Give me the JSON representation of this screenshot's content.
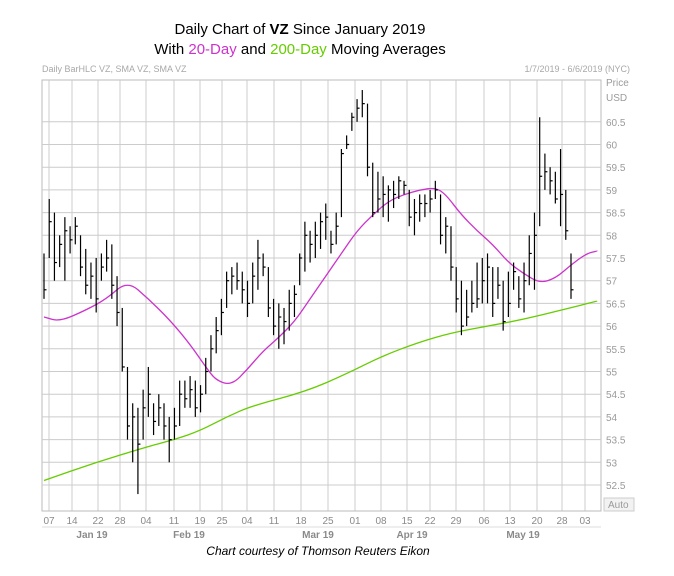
{
  "chart_data": {
    "type": "line",
    "title": {
      "line1_prefix": "Daily Chart of ",
      "line1_ticker": "VZ",
      "line1_suffix": " Since January 2019",
      "line2_prefix": "With ",
      "line2_sma20": "20-Day",
      "line2_mid": " and ",
      "line2_sma200": "200-Day",
      "line2_suffix": " Moving Averages"
    },
    "header_left": "Daily BarHLC VZ, SMA VZ, SMA VZ",
    "header_right": "1/7/2019 - 6/6/2019 (NYC)",
    "y_axis_title_1": "Price",
    "y_axis_title_2": "USD",
    "auto_label": "Auto",
    "credit": "Chart courtesy of Thomson Reuters Eikon",
    "ylim": [
      52,
      61.5
    ],
    "y_ticks": [
      "52.5",
      "53",
      "53.5",
      "54",
      "54.5",
      "55",
      "55.5",
      "56",
      "56.5",
      "57",
      "57.5",
      "58",
      "58.5",
      "59",
      "59.5",
      "60",
      "60.5"
    ],
    "x_tick_labels": [
      "07",
      "14",
      "22",
      "28",
      "04",
      "11",
      "19",
      "25",
      "04",
      "11",
      "18",
      "25",
      "01",
      "08",
      "15",
      "22",
      "29",
      "06",
      "13",
      "20",
      "28",
      "03"
    ],
    "month_labels": [
      "Jan 19",
      "Feb 19",
      "Mar 19",
      "Apr 19",
      "May 19"
    ],
    "colors": {
      "price": "#000000",
      "sma20": "#cc33cc",
      "sma200": "#66cc00",
      "grid": "#cccccc",
      "sma20_text": "#cc33cc",
      "sma200_text": "#66cc00"
    },
    "bars": [
      [
        56.6,
        57.6,
        56.8
      ],
      [
        57.5,
        58.8,
        58.3
      ],
      [
        57.0,
        58.5,
        57.4
      ],
      [
        57.3,
        58.0,
        57.8
      ],
      [
        57.0,
        58.4,
        58.1
      ],
      [
        57.6,
        58.2,
        57.9
      ],
      [
        57.8,
        58.4,
        58.2
      ],
      [
        57.1,
        58.0,
        57.3
      ],
      [
        56.7,
        57.7,
        56.9
      ],
      [
        56.6,
        57.4,
        57.1
      ],
      [
        56.3,
        57.5,
        56.6
      ],
      [
        57.0,
        57.6,
        57.3
      ],
      [
        57.2,
        57.9,
        57.5
      ],
      [
        56.6,
        57.8,
        56.9
      ],
      [
        56.0,
        57.1,
        56.3
      ],
      [
        55.0,
        56.4,
        55.1
      ],
      [
        53.5,
        55.1,
        53.8
      ],
      [
        53.0,
        54.3,
        54.0
      ],
      [
        52.3,
        54.2,
        53.4
      ],
      [
        53.5,
        54.6,
        54.2
      ],
      [
        54.0,
        55.1,
        54.5
      ],
      [
        53.6,
        54.3,
        53.9
      ],
      [
        53.8,
        54.5,
        54.2
      ],
      [
        53.5,
        54.3,
        53.8
      ],
      [
        53.0,
        54.0,
        53.5
      ],
      [
        53.5,
        54.2,
        53.8
      ],
      [
        53.8,
        54.8,
        54.5
      ],
      [
        54.2,
        54.8,
        54.4
      ],
      [
        54.2,
        54.9,
        54.6
      ],
      [
        54.0,
        54.8,
        54.2
      ],
      [
        54.1,
        54.7,
        54.5
      ],
      [
        54.5,
        55.3,
        55.0
      ],
      [
        55.0,
        55.8,
        55.5
      ],
      [
        55.4,
        56.2,
        55.9
      ],
      [
        55.8,
        56.6,
        56.3
      ],
      [
        56.4,
        57.2,
        57.0
      ],
      [
        56.7,
        57.3,
        57.1
      ],
      [
        56.8,
        57.4,
        57.0
      ],
      [
        56.5,
        57.2,
        56.8
      ],
      [
        56.2,
        57.0,
        56.5
      ],
      [
        56.5,
        57.4,
        57.1
      ],
      [
        56.8,
        57.9,
        57.5
      ],
      [
        57.1,
        57.6,
        57.3
      ],
      [
        56.2,
        57.3,
        56.4
      ],
      [
        55.8,
        56.6,
        56.0
      ],
      [
        55.5,
        56.5,
        56.2
      ],
      [
        55.6,
        56.4,
        56.1
      ],
      [
        55.9,
        56.8,
        56.5
      ],
      [
        56.2,
        56.9,
        56.7
      ],
      [
        56.9,
        57.6,
        57.5
      ],
      [
        57.2,
        58.3,
        58.0
      ],
      [
        57.4,
        58.1,
        57.8
      ],
      [
        57.5,
        58.3,
        58.0
      ],
      [
        57.7,
        58.5,
        58.3
      ],
      [
        57.9,
        58.7,
        58.4
      ],
      [
        57.6,
        58.1,
        57.8
      ],
      [
        57.8,
        58.5,
        58.2
      ],
      [
        58.4,
        59.9,
        59.8
      ],
      [
        59.9,
        60.2,
        60.0
      ],
      [
        60.3,
        60.7,
        60.6
      ],
      [
        60.5,
        61.0,
        60.8
      ],
      [
        60.6,
        61.2,
        60.9
      ],
      [
        59.3,
        60.9,
        59.5
      ],
      [
        58.4,
        59.6,
        58.5
      ],
      [
        58.5,
        59.4,
        58.8
      ],
      [
        58.4,
        59.3,
        58.9
      ],
      [
        58.3,
        59.1,
        59.0
      ],
      [
        58.6,
        59.2,
        58.9
      ],
      [
        58.8,
        59.3,
        59.2
      ],
      [
        58.9,
        59.2,
        59.1
      ],
      [
        58.2,
        59.0,
        58.4
      ],
      [
        58.0,
        58.8,
        58.5
      ],
      [
        58.3,
        58.9,
        58.7
      ],
      [
        58.4,
        58.9,
        58.7
      ],
      [
        58.5,
        59.0,
        58.8
      ],
      [
        58.8,
        59.2,
        59.0
      ],
      [
        57.8,
        58.9,
        58.0
      ],
      [
        57.6,
        58.4,
        58.2
      ],
      [
        57.0,
        58.2,
        57.3
      ],
      [
        56.3,
        57.3,
        56.6
      ],
      [
        55.8,
        57.0,
        56.0
      ],
      [
        56.0,
        56.8,
        56.2
      ],
      [
        56.3,
        57.0,
        56.5
      ],
      [
        56.4,
        57.4,
        56.6
      ],
      [
        56.5,
        57.5,
        57.0
      ],
      [
        56.5,
        57.6,
        57.3
      ],
      [
        56.2,
        57.3,
        56.5
      ],
      [
        56.6,
        57.3,
        56.9
      ],
      [
        55.9,
        57.0,
        56.1
      ],
      [
        56.2,
        57.2,
        56.5
      ],
      [
        56.8,
        57.4,
        57.2
      ],
      [
        56.4,
        57.1,
        56.6
      ],
      [
        56.3,
        57.4,
        57.0
      ],
      [
        56.9,
        58.0,
        57.6
      ],
      [
        56.8,
        58.5,
        58.0
      ],
      [
        58.2,
        60.6,
        59.3
      ],
      [
        59.0,
        59.8,
        59.4
      ],
      [
        58.9,
        59.5,
        59.2
      ],
      [
        58.7,
        59.4,
        58.8
      ],
      [
        58.2,
        59.9,
        58.9
      ],
      [
        57.9,
        59.0,
        58.1
      ],
      [
        56.6,
        57.6,
        56.8
      ]
    ],
    "sma20": [
      [
        0,
        56.2
      ],
      [
        3,
        56.1
      ],
      [
        8,
        56.35
      ],
      [
        12,
        56.6
      ],
      [
        16,
        57.0
      ],
      [
        20,
        56.6
      ],
      [
        24,
        56.15
      ],
      [
        28,
        55.6
      ],
      [
        31,
        55.1
      ],
      [
        33,
        54.8
      ],
      [
        36,
        54.7
      ],
      [
        39,
        55.05
      ],
      [
        42,
        55.45
      ],
      [
        45,
        55.75
      ],
      [
        48,
        56.1
      ],
      [
        51,
        56.6
      ],
      [
        54,
        57.1
      ],
      [
        57,
        57.6
      ],
      [
        60,
        58.1
      ],
      [
        63,
        58.45
      ],
      [
        66,
        58.75
      ],
      [
        69,
        58.9
      ],
      [
        72,
        59.0
      ],
      [
        75,
        59.05
      ],
      [
        77,
        58.9
      ],
      [
        80,
        58.45
      ],
      [
        83,
        58.1
      ],
      [
        86,
        57.8
      ],
      [
        89,
        57.4
      ],
      [
        92,
        57.15
      ],
      [
        95,
        56.95
      ],
      [
        98,
        57.05
      ],
      [
        101,
        57.35
      ],
      [
        104,
        57.6
      ],
      [
        106,
        57.65
      ]
    ],
    "sma200": [
      [
        0,
        52.6
      ],
      [
        10,
        53.0
      ],
      [
        20,
        53.35
      ],
      [
        25,
        53.5
      ],
      [
        30,
        53.7
      ],
      [
        35,
        54.0
      ],
      [
        40,
        54.25
      ],
      [
        50,
        54.55
      ],
      [
        58,
        54.95
      ],
      [
        65,
        55.35
      ],
      [
        72,
        55.65
      ],
      [
        78,
        55.85
      ],
      [
        85,
        56.0
      ],
      [
        92,
        56.15
      ],
      [
        99,
        56.35
      ],
      [
        106,
        56.55
      ]
    ]
  }
}
